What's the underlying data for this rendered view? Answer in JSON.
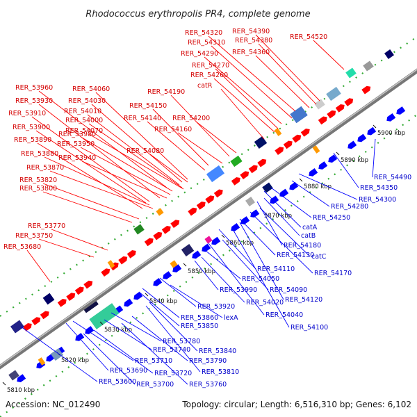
{
  "title": "Rhodococcus erythropolis PR4, complete genome",
  "footer": {
    "accession": "Accession: NC_012490",
    "summary": "Topology: circular; Length: 6,516,310 bp; Genes: 6,102"
  },
  "colors": {
    "forward": "#ff0000",
    "reverse": "#0000ff",
    "backbone": "#888888",
    "tick": "#33aa33"
  },
  "scale_ticks": [
    "5810 kbp",
    "5820 kbp",
    "5830 kbp",
    "5840 kbp",
    "5850 kbp",
    "5860 kbp",
    "5870 kbp",
    "5880 kbp",
    "5890 kbp",
    "5900 kbp"
  ],
  "labels_top": [
    "RER_53680",
    "RER_53750",
    "RER_53770",
    "RER_53800",
    "RER_53820",
    "RER_53870",
    "RER_53880",
    "RER_53940",
    "RER_53890",
    "RER_53950",
    "RER_53900",
    "RER_53980",
    "RER_53910",
    "RER_53930",
    "RER_53960",
    "RER_54060",
    "RER_54030",
    "RER_54010",
    "RER_54000",
    "RER_54070",
    "RER_54080",
    "RER_54150",
    "RER_54140",
    "RER_54160",
    "RER_54190",
    "RER_54200",
    "catR",
    "RER_54260",
    "RER_54270",
    "RER_54290",
    "RER_54310",
    "RER_54320",
    "RER_54360",
    "RER_54380",
    "RER_54390",
    "RER_54520"
  ],
  "labels_bottom": [
    "RER_53600",
    "RER_53690",
    "RER_53700",
    "RER_53710",
    "RER_53720",
    "RER_53760",
    "RER_53740",
    "RER_53790",
    "RER_53780",
    "RER_53810",
    "RER_53840",
    "RER_53850",
    "RER_53860",
    "lexA",
    "RER_53920",
    "RER_53990",
    "RER_54020",
    "RER_54050",
    "RER_54040",
    "RER_54090",
    "RER_54110",
    "RER_54100",
    "RER_54120",
    "RER_54130",
    "RER_54170",
    "catC",
    "RER_54180",
    "catB",
    "catA",
    "RER_54250",
    "RER_54280",
    "RER_54300",
    "RER_54350",
    "RER_54490"
  ]
}
